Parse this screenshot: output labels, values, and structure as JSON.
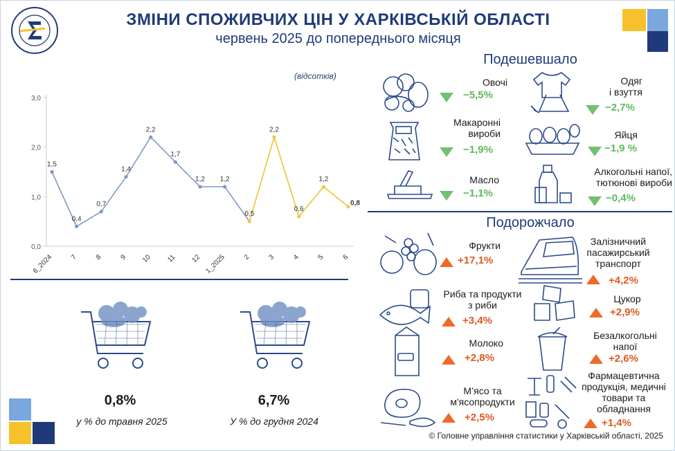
{
  "header": {
    "title": "ЗМІНИ СПОЖИВЧИХ ЦІН У ХАРКІВСЬКІЙ ОБЛАСТІ",
    "subtitle": "червень 2025 до попереднього місяця",
    "logo_text": "ДЕРЖСТАТ УКРАЇНИ"
  },
  "colors": {
    "navy": "#1f3a7a",
    "blue_line": "#7f98c4",
    "yellow_line": "#eccb45",
    "down": "#5fb85f",
    "up": "#e05a22",
    "sq_yellow": "#f6c12b",
    "sq_lightblue": "#7aa7de",
    "sq_navy": "#1f3a7a"
  },
  "chart_data": {
    "type": "line",
    "units_label": "(відсотків)",
    "categories": [
      "6_2024",
      "7",
      "8",
      "9",
      "10",
      "11",
      "12",
      "1_2025",
      "2",
      "3",
      "4",
      "5",
      "6"
    ],
    "values": [
      1.5,
      0.4,
      0.7,
      1.4,
      2.2,
      1.7,
      1.2,
      1.2,
      0.5,
      2.2,
      0.6,
      1.2,
      0.8
    ],
    "data_labels": [
      "1,5",
      "0,4",
      "0,7",
      "1,4",
      "2,2",
      "1,7",
      "1,2",
      "1,2",
      "0,5",
      "2,2",
      "0,6",
      "1,2",
      "0,8"
    ],
    "highlight_start_index": 8,
    "ylim": [
      0,
      3
    ],
    "y_ticks": [
      0,
      1,
      2,
      3
    ],
    "y_tick_labels": [
      "0,0",
      "1,0",
      "2,0",
      "3,0"
    ],
    "grid": false
  },
  "summary": [
    {
      "value": "0,8%",
      "caption": "у % до травня 2025"
    },
    {
      "value": "6,7%",
      "caption": "У % до грудня 2024"
    }
  ],
  "cheaper": {
    "heading": "Подешевшало",
    "items": [
      {
        "label": "Овочі",
        "value": "−5,5%",
        "icon": "vegetables-icon"
      },
      {
        "label": "Одяг\nі взуття",
        "value": "−2,7%",
        "icon": "clothes-icon"
      },
      {
        "label": "Макаронні\nвироби",
        "value": "−1,9%",
        "icon": "pasta-icon"
      },
      {
        "label": "Яйця",
        "value": "−1,9 %",
        "icon": "eggs-icon"
      },
      {
        "label": "Масло",
        "value": "−1,1%",
        "icon": "butter-icon"
      },
      {
        "label": "Алкогольні напої,\nтютюнові вироби",
        "value": "−0,4%",
        "icon": "alcohol-icon"
      }
    ]
  },
  "pricier": {
    "heading": "Подорожчало",
    "items": [
      {
        "label": "Фрукти",
        "value": "+17,1%",
        "icon": "fruits-icon"
      },
      {
        "label": "Залізничний\nпасажирський\nтранспорт",
        "value": "+4,2%",
        "icon": "train-icon"
      },
      {
        "label": "Риба та продукти\nз риби",
        "value": "+3,4%",
        "icon": "fish-icon"
      },
      {
        "label": "Цукор",
        "value": "+2,9%",
        "icon": "sugar-icon"
      },
      {
        "label": "Молоко",
        "value": "+2,8%",
        "icon": "milk-icon"
      },
      {
        "label": "Безалкогольні\nнапої",
        "value": "+2,6%",
        "icon": "soft-drink-icon"
      },
      {
        "label": "М’ясо та\nм'ясопродукти",
        "value": "+2,5%",
        "icon": "meat-icon"
      },
      {
        "label": "Фармацевтична\nпродукція, медичні\nтовари та\nобладнання",
        "value": "+1,4%",
        "icon": "pharma-icon"
      }
    ]
  },
  "footer": {
    "copyright": "© Головне управління статистики у Харківській області, 2025"
  }
}
